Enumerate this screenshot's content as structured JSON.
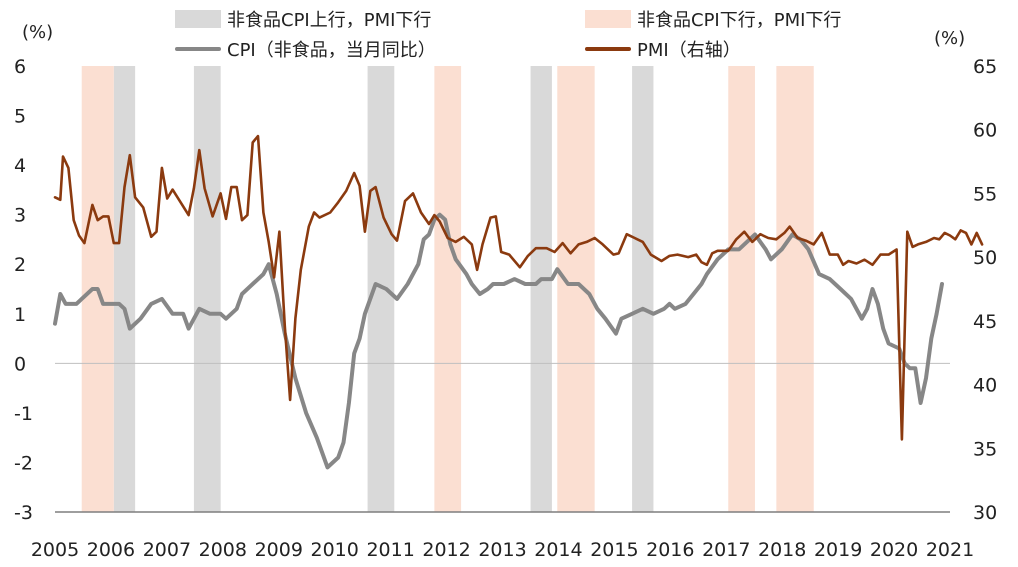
{
  "chart_data": {
    "type": "line",
    "legend": {
      "gray_band": "非食品CPI上行，PMI下行",
      "peach_band": "非食品CPI下行，PMI下行",
      "cpi_line": "CPI（非食品，当月同比）",
      "pmi_line": "PMI（右轴）"
    },
    "units": {
      "left": "(%)",
      "right": "(%)"
    },
    "left_axis": {
      "min": -3,
      "max": 6,
      "ticks": [
        "6",
        "5",
        "4",
        "3",
        "2",
        "1",
        "0",
        "-1",
        "-2",
        "-3"
      ]
    },
    "right_axis": {
      "min": 30,
      "max": 65,
      "ticks": [
        "65",
        "60",
        "55",
        "50",
        "45",
        "40",
        "35",
        "30"
      ]
    },
    "x_axis": {
      "start": 2005,
      "end": 2021.75,
      "tick_labels": [
        "2005",
        "2006",
        "2007",
        "2008",
        "2009",
        "2010",
        "2011",
        "2012",
        "2013",
        "2014",
        "2015",
        "2016",
        "2017",
        "2018",
        "2019",
        "2020",
        "2021"
      ]
    },
    "colors": {
      "cpi": "#878787",
      "pmi": "#8B3A0F",
      "gray_band": "#d9d9d9",
      "peach_band": "#fbdfd2",
      "axis": "#7f7f7f"
    },
    "gray_bands": [
      [
        2006.1,
        2006.5
      ],
      [
        2007.6,
        2008.1
      ],
      [
        2010.85,
        2011.35
      ],
      [
        2013.9,
        2014.3
      ],
      [
        2015.8,
        2016.2
      ]
    ],
    "peach_bands": [
      [
        2005.5,
        2006.1
      ],
      [
        2012.1,
        2012.6
      ],
      [
        2014.4,
        2015.1
      ],
      [
        2017.6,
        2018.1
      ],
      [
        2018.5,
        2019.2
      ]
    ],
    "series": [
      {
        "name": "CPI（非食品，当月同比）",
        "axis": "left",
        "points": [
          [
            2005.0,
            0.8
          ],
          [
            2005.1,
            1.4
          ],
          [
            2005.2,
            1.2
          ],
          [
            2005.4,
            1.2
          ],
          [
            2005.5,
            1.3
          ],
          [
            2005.7,
            1.5
          ],
          [
            2005.8,
            1.5
          ],
          [
            2005.9,
            1.2
          ],
          [
            2006.2,
            1.2
          ],
          [
            2006.3,
            1.1
          ],
          [
            2006.4,
            0.7
          ],
          [
            2006.6,
            0.9
          ],
          [
            2006.8,
            1.2
          ],
          [
            2007.0,
            1.3
          ],
          [
            2007.2,
            1.0
          ],
          [
            2007.4,
            1.0
          ],
          [
            2007.5,
            0.7
          ],
          [
            2007.7,
            1.1
          ],
          [
            2007.9,
            1.0
          ],
          [
            2008.1,
            1.0
          ],
          [
            2008.2,
            0.9
          ],
          [
            2008.4,
            1.1
          ],
          [
            2008.5,
            1.4
          ],
          [
            2008.7,
            1.6
          ],
          [
            2008.9,
            1.8
          ],
          [
            2009.0,
            2.0
          ],
          [
            2009.15,
            1.4
          ],
          [
            2009.3,
            0.6
          ],
          [
            2009.5,
            -0.3
          ],
          [
            2009.7,
            -1.0
          ],
          [
            2009.9,
            -1.5
          ],
          [
            2010.1,
            -2.1
          ],
          [
            2010.3,
            -1.9
          ],
          [
            2010.4,
            -1.6
          ],
          [
            2010.5,
            -0.8
          ],
          [
            2010.6,
            0.2
          ],
          [
            2010.7,
            0.5
          ],
          [
            2010.8,
            1.0
          ],
          [
            2011.0,
            1.6
          ],
          [
            2011.2,
            1.5
          ],
          [
            2011.4,
            1.3
          ],
          [
            2011.6,
            1.6
          ],
          [
            2011.8,
            2.0
          ],
          [
            2011.9,
            2.5
          ],
          [
            2012.0,
            2.6
          ],
          [
            2012.1,
            2.9
          ],
          [
            2012.2,
            3.0
          ],
          [
            2012.3,
            2.9
          ],
          [
            2012.4,
            2.4
          ],
          [
            2012.5,
            2.1
          ],
          [
            2012.7,
            1.8
          ],
          [
            2012.8,
            1.6
          ],
          [
            2012.95,
            1.4
          ],
          [
            2013.1,
            1.5
          ],
          [
            2013.2,
            1.6
          ],
          [
            2013.4,
            1.6
          ],
          [
            2013.6,
            1.7
          ],
          [
            2013.8,
            1.6
          ],
          [
            2014.0,
            1.6
          ],
          [
            2014.1,
            1.7
          ],
          [
            2014.3,
            1.7
          ],
          [
            2014.4,
            1.9
          ],
          [
            2014.6,
            1.6
          ],
          [
            2014.8,
            1.6
          ],
          [
            2015.0,
            1.4
          ],
          [
            2015.15,
            1.1
          ],
          [
            2015.3,
            0.9
          ],
          [
            2015.5,
            0.6
          ],
          [
            2015.6,
            0.9
          ],
          [
            2015.8,
            1.0
          ],
          [
            2016.0,
            1.1
          ],
          [
            2016.2,
            1.0
          ],
          [
            2016.4,
            1.1
          ],
          [
            2016.5,
            1.2
          ],
          [
            2016.6,
            1.1
          ],
          [
            2016.8,
            1.2
          ],
          [
            2016.95,
            1.4
          ],
          [
            2017.1,
            1.6
          ],
          [
            2017.2,
            1.8
          ],
          [
            2017.4,
            2.1
          ],
          [
            2017.6,
            2.3
          ],
          [
            2017.8,
            2.3
          ],
          [
            2018.0,
            2.5
          ],
          [
            2018.1,
            2.6
          ],
          [
            2018.3,
            2.3
          ],
          [
            2018.4,
            2.1
          ],
          [
            2018.6,
            2.3
          ],
          [
            2018.8,
            2.6
          ],
          [
            2018.95,
            2.5
          ],
          [
            2019.1,
            2.3
          ],
          [
            2019.3,
            1.8
          ],
          [
            2019.5,
            1.7
          ],
          [
            2019.7,
            1.5
          ],
          [
            2019.9,
            1.3
          ],
          [
            2020.1,
            0.9
          ],
          [
            2020.2,
            1.1
          ],
          [
            2020.3,
            1.5
          ],
          [
            2020.4,
            1.2
          ],
          [
            2020.5,
            0.7
          ],
          [
            2020.6,
            0.4
          ],
          [
            2020.8,
            0.3
          ],
          [
            2020.9,
            0.0
          ],
          [
            2021.0,
            -0.1
          ],
          [
            2021.1,
            -0.1
          ],
          [
            2021.2,
            -0.8
          ],
          [
            2021.3,
            -0.3
          ],
          [
            2021.4,
            0.5
          ],
          [
            2021.5,
            1.0
          ],
          [
            2021.6,
            1.6
          ]
        ]
      },
      {
        "name": "PMI（右轴）",
        "axis": "right",
        "points": [
          [
            2005.0,
            54.7
          ],
          [
            2005.1,
            54.5
          ],
          [
            2005.15,
            57.9
          ],
          [
            2005.25,
            57.0
          ],
          [
            2005.35,
            52.9
          ],
          [
            2005.45,
            51.7
          ],
          [
            2005.55,
            51.1
          ],
          [
            2005.7,
            54.1
          ],
          [
            2005.8,
            52.9
          ],
          [
            2005.9,
            53.2
          ],
          [
            2006.0,
            53.2
          ],
          [
            2006.1,
            51.1
          ],
          [
            2006.2,
            51.1
          ],
          [
            2006.3,
            55.5
          ],
          [
            2006.4,
            58.0
          ],
          [
            2006.5,
            54.7
          ],
          [
            2006.65,
            53.9
          ],
          [
            2006.8,
            51.6
          ],
          [
            2006.9,
            52.0
          ],
          [
            2007.0,
            57.0
          ],
          [
            2007.1,
            54.6
          ],
          [
            2007.2,
            55.3
          ],
          [
            2007.35,
            54.3
          ],
          [
            2007.5,
            53.3
          ],
          [
            2007.6,
            55.4
          ],
          [
            2007.7,
            58.4
          ],
          [
            2007.8,
            55.4
          ],
          [
            2007.95,
            53.2
          ],
          [
            2008.1,
            55.0
          ],
          [
            2008.2,
            53.0
          ],
          [
            2008.3,
            55.5
          ],
          [
            2008.4,
            55.5
          ],
          [
            2008.5,
            52.9
          ],
          [
            2008.6,
            53.3
          ],
          [
            2008.7,
            59.0
          ],
          [
            2008.8,
            59.5
          ],
          [
            2008.9,
            53.5
          ],
          [
            2009.0,
            51.2
          ],
          [
            2009.1,
            48.4
          ],
          [
            2009.2,
            52.0
          ],
          [
            2009.3,
            44.6
          ],
          [
            2009.4,
            38.8
          ],
          [
            2009.5,
            45.2
          ],
          [
            2009.6,
            49.0
          ],
          [
            2009.75,
            52.4
          ],
          [
            2009.85,
            53.5
          ],
          [
            2009.95,
            53.1
          ],
          [
            2010.15,
            53.5
          ],
          [
            2010.3,
            54.3
          ],
          [
            2010.45,
            55.2
          ],
          [
            2010.6,
            56.6
          ],
          [
            2010.7,
            55.6
          ],
          [
            2010.8,
            52.0
          ],
          [
            2010.9,
            55.2
          ],
          [
            2011.0,
            55.5
          ],
          [
            2011.15,
            53.1
          ],
          [
            2011.3,
            51.8
          ],
          [
            2011.4,
            51.3
          ],
          [
            2011.55,
            54.4
          ],
          [
            2011.7,
            55.0
          ],
          [
            2011.85,
            53.5
          ],
          [
            2012.0,
            52.6
          ],
          [
            2012.1,
            53.3
          ],
          [
            2012.2,
            52.8
          ],
          [
            2012.35,
            51.5
          ],
          [
            2012.5,
            51.2
          ],
          [
            2012.65,
            51.6
          ],
          [
            2012.8,
            51.0
          ],
          [
            2012.9,
            49.0
          ],
          [
            2013.0,
            51.0
          ],
          [
            2013.15,
            53.1
          ],
          [
            2013.25,
            53.2
          ],
          [
            2013.35,
            50.4
          ],
          [
            2013.5,
            50.2
          ],
          [
            2013.7,
            49.2
          ],
          [
            2013.85,
            50.1
          ],
          [
            2014.0,
            50.7
          ],
          [
            2014.2,
            50.7
          ],
          [
            2014.35,
            50.4
          ],
          [
            2014.5,
            51.1
          ],
          [
            2014.65,
            50.3
          ],
          [
            2014.8,
            51.0
          ],
          [
            2014.95,
            51.2
          ],
          [
            2015.1,
            51.5
          ],
          [
            2015.25,
            51.0
          ],
          [
            2015.45,
            50.2
          ],
          [
            2015.55,
            50.3
          ],
          [
            2015.7,
            51.8
          ],
          [
            2015.85,
            51.5
          ],
          [
            2016.0,
            51.2
          ],
          [
            2016.15,
            50.2
          ],
          [
            2016.35,
            49.7
          ],
          [
            2016.5,
            50.1
          ],
          [
            2016.65,
            50.2
          ],
          [
            2016.85,
            50.0
          ],
          [
            2017.0,
            50.2
          ],
          [
            2017.1,
            49.6
          ],
          [
            2017.2,
            49.4
          ],
          [
            2017.3,
            50.3
          ],
          [
            2017.4,
            50.5
          ],
          [
            2017.6,
            50.5
          ],
          [
            2017.75,
            51.4
          ],
          [
            2017.9,
            52.0
          ],
          [
            2018.05,
            51.2
          ],
          [
            2018.2,
            51.8
          ],
          [
            2018.35,
            51.5
          ],
          [
            2018.5,
            51.4
          ],
          [
            2018.65,
            51.9
          ],
          [
            2018.75,
            52.4
          ],
          [
            2018.9,
            51.5
          ],
          [
            2019.05,
            51.3
          ],
          [
            2019.2,
            51.0
          ],
          [
            2019.35,
            51.9
          ],
          [
            2019.5,
            50.2
          ],
          [
            2019.65,
            50.2
          ],
          [
            2019.75,
            49.4
          ],
          [
            2019.85,
            49.7
          ],
          [
            2020.0,
            49.5
          ],
          [
            2020.15,
            49.8
          ],
          [
            2020.3,
            49.4
          ],
          [
            2020.45,
            50.2
          ],
          [
            2020.6,
            50.2
          ],
          [
            2020.75,
            50.6
          ],
          [
            2020.85,
            35.7
          ],
          [
            2020.95,
            52.0
          ],
          [
            2021.05,
            50.8
          ],
          [
            2021.15,
            51.0
          ],
          [
            2021.3,
            51.2
          ],
          [
            2021.45,
            51.5
          ],
          [
            2021.55,
            51.4
          ],
          [
            2021.65,
            51.9
          ],
          [
            2021.75,
            51.7
          ],
          [
            2021.85,
            51.4
          ],
          [
            2021.95,
            52.1
          ],
          [
            2022.05,
            51.9
          ],
          [
            2022.15,
            51.0
          ],
          [
            2022.25,
            51.9
          ],
          [
            2022.35,
            51.0
          ]
        ]
      }
    ]
  }
}
